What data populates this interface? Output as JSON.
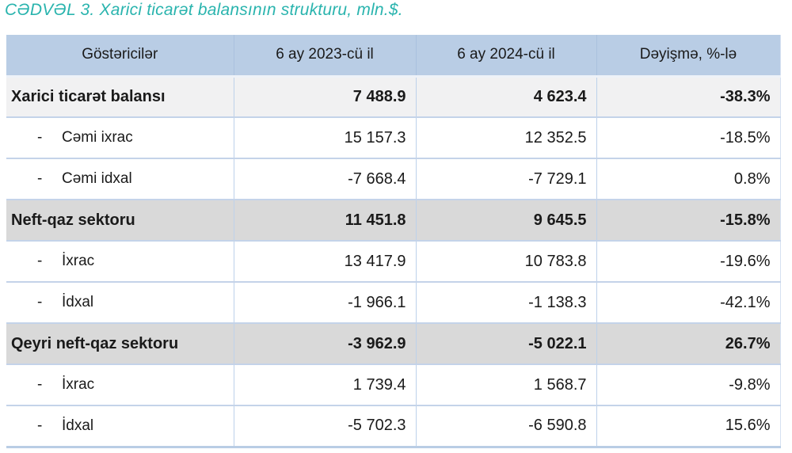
{
  "title": "CƏDVƏL 3. Xarici ticarət balansının strukturu, mln.$.",
  "colors": {
    "title_color": "#2ab4ae",
    "header_bg": "#b9cde5",
    "section_bg": "#d9d9d9",
    "total_bg": "#f1f1f2",
    "row_line": "#c4d3e9",
    "v_line": "#bdd1ea",
    "text": "#1a1a1a"
  },
  "table": {
    "bullet": "-",
    "columns": [
      "Göstəricilər",
      "6 ay 2023-cü il",
      "6 ay 2024-cü il",
      "Dəyişmə, %-lə"
    ],
    "rows": [
      {
        "label": "Xarici ticarət balansı",
        "indent": false,
        "style": "total",
        "v2023": "7 488.9",
        "v2024": "4 623.4",
        "change": "-38.3%"
      },
      {
        "label": "Cəmi ixrac",
        "indent": true,
        "style": "sub",
        "v2023": "15 157.3",
        "v2024": "12 352.5",
        "change": "-18.5%"
      },
      {
        "label": "Cəmi idxal",
        "indent": true,
        "style": "sub",
        "v2023": "-7 668.4",
        "v2024": "-7 729.1",
        "change": "0.8%"
      },
      {
        "label": "Neft-qaz sektoru",
        "indent": false,
        "style": "section",
        "v2023": "11 451.8",
        "v2024": "9 645.5",
        "change": "-15.8%"
      },
      {
        "label": "İxrac",
        "indent": true,
        "style": "sub",
        "v2023": "13 417.9",
        "v2024": "10 783.8",
        "change": "-19.6%"
      },
      {
        "label": "İdxal",
        "indent": true,
        "style": "sub",
        "v2023": "-1 966.1",
        "v2024": "-1 138.3",
        "change": "-42.1%"
      },
      {
        "label": "Qeyri neft-qaz sektoru",
        "indent": false,
        "style": "section",
        "v2023": "-3 962.9",
        "v2024": "-5 022.1",
        "change": "26.7%"
      },
      {
        "label": "İxrac",
        "indent": true,
        "style": "sub",
        "v2023": "1 739.4",
        "v2024": "1 568.7",
        "change": "-9.8%"
      },
      {
        "label": "İdxal",
        "indent": true,
        "style": "sub",
        "v2023": "-5 702.3",
        "v2024": "-6 590.8",
        "change": "15.6%"
      }
    ]
  }
}
